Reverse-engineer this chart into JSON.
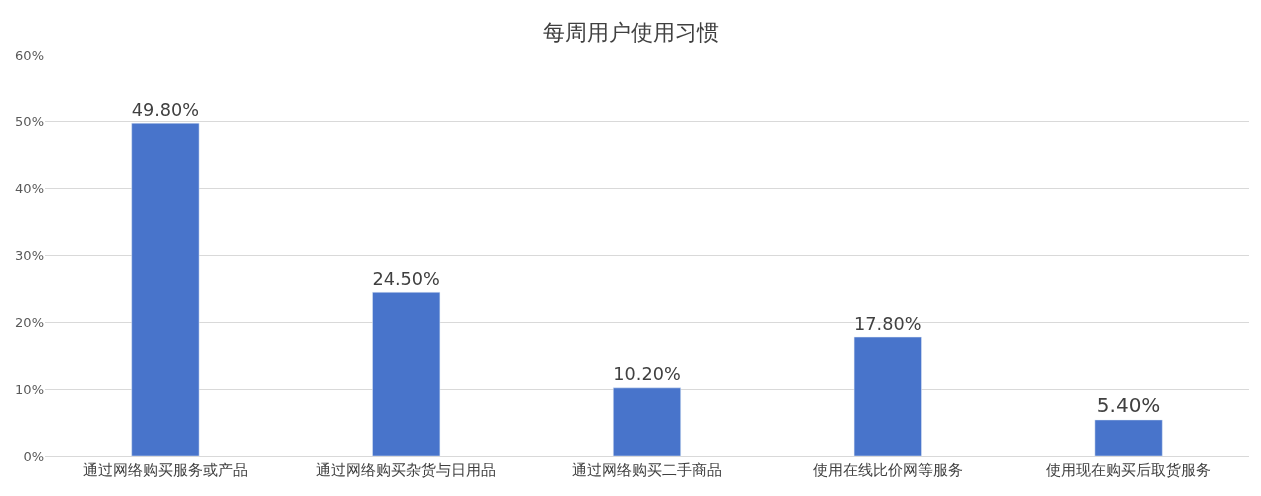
{
  "chart_data": {
    "type": "bar",
    "title": "每周用户使用习惯",
    "categories": [
      "通过网络购买服务或产品",
      "通过网络购买杂货与日用品",
      "通过网络购买二手商品",
      "使用在线比价网等服务",
      "使用现在购买后取货服务"
    ],
    "values": [
      49.8,
      24.5,
      10.2,
      17.8,
      5.4
    ],
    "value_labels": [
      "49.80%",
      "24.50%",
      "10.20%",
      "17.80%",
      "5.40%"
    ],
    "color": "#4874cb",
    "ylim": [
      0,
      60
    ],
    "yticks": [
      {
        "value": 0,
        "label": "0%"
      },
      {
        "value": 10,
        "label": "10%"
      },
      {
        "value": 20,
        "label": "20%"
      },
      {
        "value": 30,
        "label": "30%"
      },
      {
        "value": 40,
        "label": "40%"
      },
      {
        "value": 50,
        "label": "50%"
      },
      {
        "value": 60,
        "label": "60%"
      }
    ],
    "grid": "y"
  }
}
